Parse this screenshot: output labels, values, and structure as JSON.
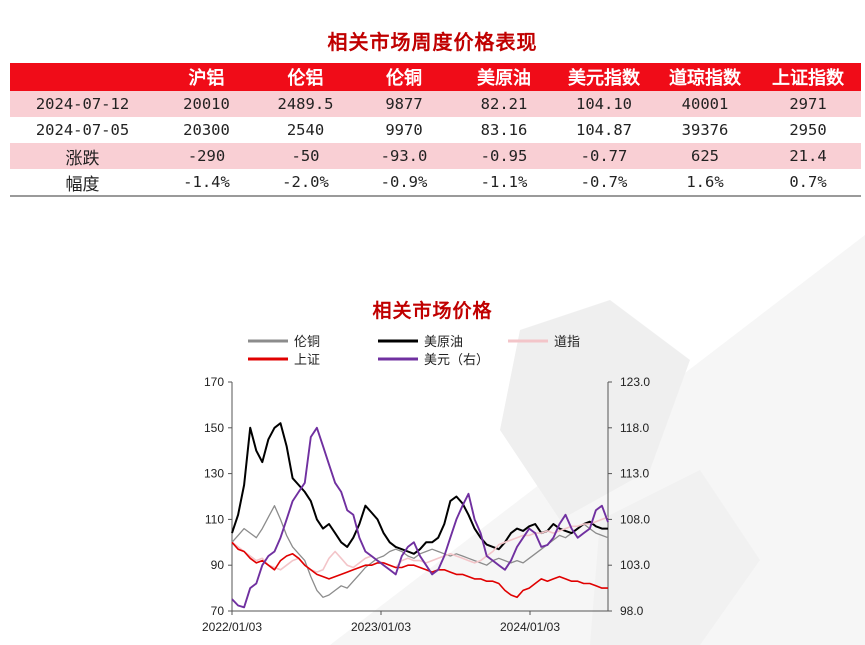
{
  "title": "相关市场周度价格表现",
  "table": {
    "headers": [
      "",
      "沪铝",
      "伦铝",
      "伦铜",
      "美原油",
      "美元指数",
      "道琼指数",
      "上证指数"
    ],
    "rows": [
      {
        "label": "2024-07-12",
        "values": [
          "20010",
          "2489.5",
          "9877",
          "82.21",
          "104.10",
          "40001",
          "2971"
        ]
      },
      {
        "label": "2024-07-05",
        "values": [
          "20300",
          "2540",
          "9970",
          "83.16",
          "104.87",
          "39376",
          "2950"
        ]
      },
      {
        "label": "涨跌",
        "values": [
          "-290",
          "-50",
          "-93.0",
          "-0.95",
          "-0.77",
          "625",
          "21.4"
        ]
      },
      {
        "label": "幅度",
        "values": [
          "-1.4%",
          "-2.0%",
          "-0.9%",
          "-1.1%",
          "-0.7%",
          "1.6%",
          "0.7%"
        ]
      }
    ]
  },
  "chart_data": {
    "type": "line",
    "title": "相关市场价格",
    "legend_position": "top",
    "x_ticks": [
      "2022/01/03",
      "2023/01/03",
      "2024/01/03"
    ],
    "x_range": [
      "2022/01/03",
      "2024/07/12"
    ],
    "y_left": {
      "ticks": [
        "170",
        "150",
        "130",
        "110",
        "90",
        "70"
      ],
      "range": [
        70,
        170
      ]
    },
    "y_right": {
      "ticks": [
        "123.0",
        "118.0",
        "113.0",
        "108.0",
        "103.0",
        "98.0"
      ],
      "range": [
        98,
        123
      ]
    },
    "grid": false,
    "series": [
      {
        "name": "伦铜",
        "color": "#8c8c8c",
        "axis": "left",
        "width": 1.3,
        "values": [
          100,
          103,
          106,
          104,
          102,
          106,
          111,
          116,
          110,
          103,
          98,
          95,
          92,
          85,
          79,
          76,
          77,
          79,
          81,
          80,
          83,
          86,
          89,
          91,
          93,
          94,
          96,
          97,
          96,
          94,
          93,
          95,
          96,
          97,
          96,
          95,
          94,
          95,
          94,
          93,
          92,
          91,
          90,
          92,
          93,
          92,
          91,
          92,
          91,
          93,
          95,
          97,
          99,
          101,
          103,
          102,
          104,
          106,
          108,
          106,
          104,
          103,
          102
        ]
      },
      {
        "name": "美原油",
        "color": "#000000",
        "axis": "left",
        "width": 2.0,
        "values": [
          104,
          112,
          125,
          150,
          140,
          135,
          145,
          150,
          152,
          142,
          128,
          125,
          122,
          118,
          110,
          106,
          108,
          104,
          100,
          98,
          102,
          108,
          116,
          113,
          110,
          104,
          100,
          98,
          97,
          96,
          95,
          97,
          100,
          100,
          102,
          108,
          118,
          120,
          117,
          112,
          106,
          102,
          99,
          98,
          97,
          100,
          104,
          106,
          105,
          107,
          108,
          104,
          105,
          108,
          106,
          105,
          104,
          106,
          108,
          109,
          107,
          106,
          106
        ]
      },
      {
        "name": "道指",
        "color": "#f3c5c9",
        "axis": "left",
        "width": 1.6,
        "values": [
          100,
          98,
          96,
          94,
          92,
          93,
          90,
          89,
          88,
          90,
          92,
          93,
          90,
          88,
          87,
          88,
          93,
          96,
          93,
          90,
          89,
          91,
          93,
          94,
          92,
          91,
          90,
          89,
          92,
          93,
          92,
          92,
          91,
          92,
          93,
          94,
          95,
          94,
          93,
          92,
          91,
          92,
          94,
          96,
          99,
          100,
          101,
          102,
          103,
          103,
          104,
          104,
          105,
          104,
          105,
          106,
          107,
          107,
          108,
          108,
          109,
          110,
          111
        ]
      },
      {
        "name": "上证",
        "color": "#e00000",
        "axis": "left",
        "width": 1.6,
        "values": [
          100,
          97,
          96,
          93,
          91,
          92,
          90,
          88,
          92,
          94,
          95,
          93,
          90,
          88,
          86,
          85,
          84,
          85,
          86,
          87,
          88,
          89,
          90,
          90,
          91,
          91,
          90,
          89,
          89,
          90,
          90,
          89,
          88,
          87,
          88,
          88,
          87,
          86,
          86,
          85,
          84,
          84,
          83,
          83,
          82,
          79,
          77,
          76,
          79,
          80,
          82,
          84,
          83,
          84,
          85,
          84,
          83,
          83,
          82,
          82,
          81,
          80,
          80
        ]
      },
      {
        "name": "美元（右）",
        "color": "#7030a0",
        "axis": "right",
        "width": 1.9,
        "values": [
          99.3,
          98.6,
          98.4,
          100.5,
          101,
          103,
          104,
          104.5,
          106,
          108,
          110,
          111,
          112,
          117,
          118,
          116,
          114,
          112,
          111,
          109,
          108.5,
          106,
          104.5,
          104,
          103.5,
          103,
          102.5,
          102,
          104,
          105,
          105.5,
          104,
          103,
          102,
          102.5,
          104,
          106,
          108,
          109.5,
          110.8,
          108,
          106.5,
          104,
          103.5,
          103,
          102.5,
          103.5,
          105,
          106,
          107,
          106.5,
          105,
          105.2,
          106,
          107.5,
          108.5,
          107,
          106,
          106.5,
          107,
          109,
          109.5,
          107.7
        ]
      }
    ]
  }
}
